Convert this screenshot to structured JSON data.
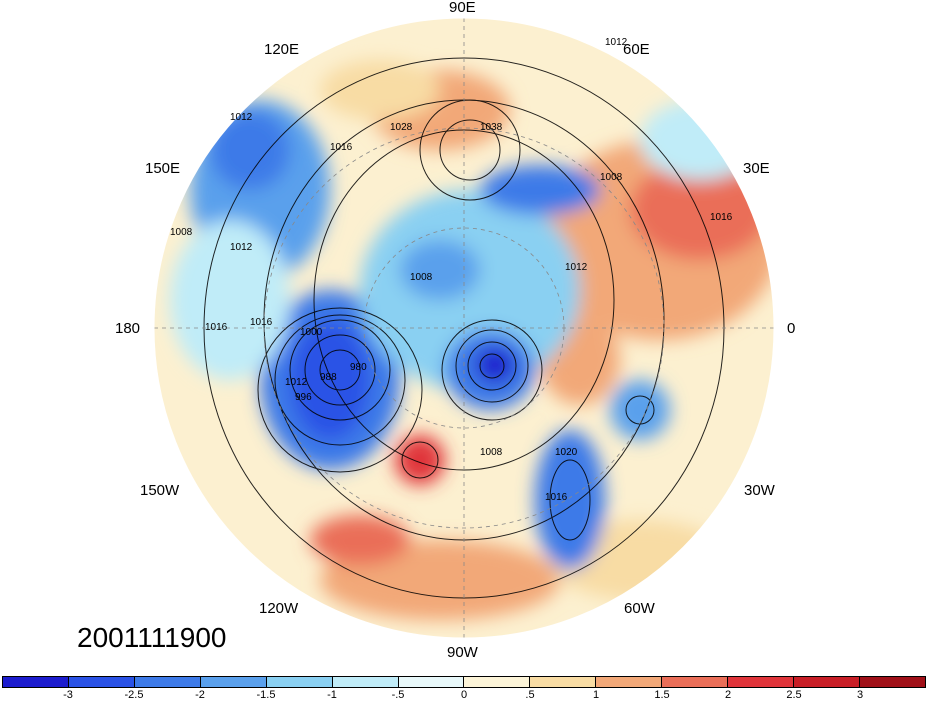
{
  "map": {
    "date_label": "2001111900",
    "longitude_labels": [
      {
        "id": "lon-90e",
        "text": "90E"
      },
      {
        "id": "lon-60e",
        "text": "60E"
      },
      {
        "id": "lon-30e",
        "text": "30E"
      },
      {
        "id": "lon-0",
        "text": "0"
      },
      {
        "id": "lon-30w",
        "text": "30W"
      },
      {
        "id": "lon-60w",
        "text": "60W"
      },
      {
        "id": "lon-90w",
        "text": "90W"
      },
      {
        "id": "lon-120w",
        "text": "120W"
      },
      {
        "id": "lon-150w",
        "text": "150W"
      },
      {
        "id": "lon-180",
        "text": "180"
      },
      {
        "id": "lon-150e",
        "text": "150E"
      },
      {
        "id": "lon-120e",
        "text": "120E"
      }
    ],
    "contour_labels": [
      "1008",
      "1012",
      "1016",
      "1008",
      "1016",
      "1012",
      "1000",
      "980",
      "988",
      "996",
      "1012",
      "1028",
      "1038",
      "1008",
      "1012",
      "1020",
      "1016",
      "1016",
      "1008",
      "1012",
      "1016"
    ],
    "colorbar": {
      "ticks": [
        "-3",
        "-2.5",
        "-2",
        "-1.5",
        "-1",
        "-.5",
        "0",
        ".5",
        "1",
        "1.5",
        "2",
        "2.5",
        "3"
      ],
      "colors": [
        "#1c1ccf",
        "#2a52e6",
        "#3d7ae8",
        "#5aa0ec",
        "#8ad0f2",
        "#c0ecf8",
        "#e8f8fa",
        "#fcf4d8",
        "#f8dca4",
        "#f2a878",
        "#ea6e58",
        "#e0343a",
        "#c81e26",
        "#a01018"
      ]
    }
  }
}
